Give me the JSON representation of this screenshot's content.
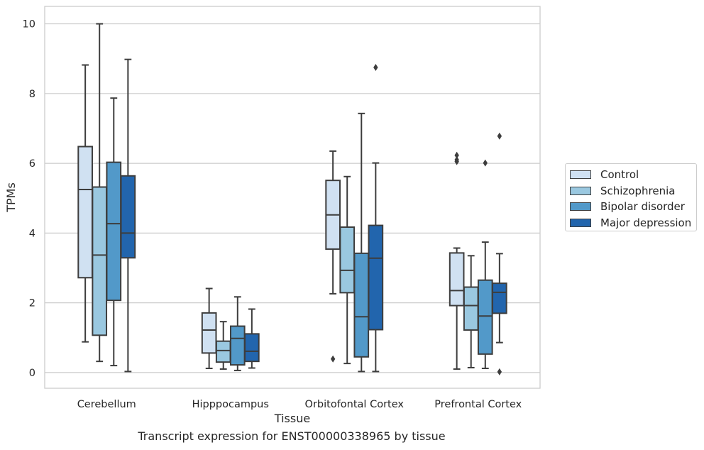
{
  "chart_data": {
    "type": "boxplot",
    "xlabel": "Tissue",
    "ylabel": "TPMs",
    "caption": "Transcript expression for ENST00000338965 by tissue",
    "ylim": [
      -0.45,
      10.5
    ],
    "yticks": [
      0,
      2,
      4,
      6,
      8,
      10
    ],
    "grid": "horizontal",
    "legend_position": "right",
    "categories": [
      "Cerebellum",
      "Hipppocampus",
      "Orbitofontal Cortex",
      "Prefrontal Cortex"
    ],
    "series": [
      {
        "name": "Control",
        "color": "#d0e1f2",
        "boxes": [
          {
            "whislo": 0.88,
            "q1": 2.72,
            "med": 5.25,
            "q3": 6.48,
            "whishi": 8.82,
            "fliers": []
          },
          {
            "whislo": 0.12,
            "q1": 0.56,
            "med": 1.22,
            "q3": 1.71,
            "whishi": 2.41,
            "fliers": []
          },
          {
            "whislo": 2.26,
            "q1": 3.54,
            "med": 4.52,
            "q3": 5.51,
            "whishi": 6.35,
            "fliers": [
              0.39
            ]
          },
          {
            "whislo": 0.1,
            "q1": 1.92,
            "med": 2.35,
            "q3": 3.43,
            "whishi": 3.57,
            "fliers": [
              6.05,
              6.1,
              6.23
            ]
          }
        ]
      },
      {
        "name": "Schizophrenia",
        "color": "#9ac8e0",
        "boxes": [
          {
            "whislo": 0.32,
            "q1": 1.07,
            "med": 3.37,
            "q3": 5.32,
            "whishi": 10.0,
            "fliers": []
          },
          {
            "whislo": 0.1,
            "q1": 0.3,
            "med": 0.63,
            "q3": 0.9,
            "whishi": 1.46,
            "fliers": []
          },
          {
            "whislo": 0.26,
            "q1": 2.29,
            "med": 2.93,
            "q3": 4.17,
            "whishi": 5.62,
            "fliers": []
          },
          {
            "whislo": 0.14,
            "q1": 1.22,
            "med": 1.92,
            "q3": 2.45,
            "whishi": 3.35,
            "fliers": []
          }
        ]
      },
      {
        "name": "Bipolar disorder",
        "color": "#5299c9",
        "boxes": [
          {
            "whislo": 0.2,
            "q1": 2.07,
            "med": 4.27,
            "q3": 6.03,
            "whishi": 7.87,
            "fliers": []
          },
          {
            "whislo": 0.06,
            "q1": 0.22,
            "med": 0.98,
            "q3": 1.33,
            "whishi": 2.17,
            "fliers": []
          },
          {
            "whislo": 0.03,
            "q1": 0.45,
            "med": 1.6,
            "q3": 3.42,
            "whishi": 7.43,
            "fliers": []
          },
          {
            "whislo": 0.12,
            "q1": 0.53,
            "med": 1.62,
            "q3": 2.65,
            "whishi": 3.74,
            "fliers": [
              6.01
            ]
          }
        ]
      },
      {
        "name": "Major depression",
        "color": "#2265ad",
        "boxes": [
          {
            "whislo": 0.03,
            "q1": 3.29,
            "med": 4.0,
            "q3": 5.64,
            "whishi": 8.98,
            "fliers": []
          },
          {
            "whislo": 0.13,
            "q1": 0.32,
            "med": 0.61,
            "q3": 1.11,
            "whishi": 1.82,
            "fliers": []
          },
          {
            "whislo": 0.03,
            "q1": 1.23,
            "med": 3.28,
            "q3": 4.22,
            "whishi": 6.01,
            "fliers": [
              8.75
            ]
          },
          {
            "whislo": 0.86,
            "q1": 1.7,
            "med": 2.3,
            "q3": 2.56,
            "whishi": 3.41,
            "fliers": [
              0.02,
              6.78
            ]
          }
        ]
      }
    ]
  }
}
